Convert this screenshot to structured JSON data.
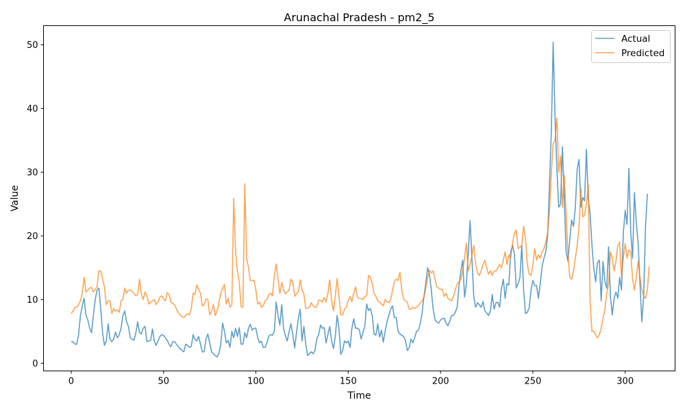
{
  "chart_data": {
    "type": "line",
    "title": "Arunachal Pradesh - pm2_5",
    "xlabel": "Time",
    "ylabel": "Value",
    "xlim": [
      -15,
      327
    ],
    "ylim": [
      -1.2,
      53
    ],
    "xticks": [
      0,
      50,
      100,
      150,
      200,
      250,
      300
    ],
    "yticks": [
      0,
      10,
      20,
      30,
      40,
      50
    ],
    "grid": false,
    "legend_position": "upper right",
    "series": [
      {
        "name": "Actual",
        "color": "#1f77b4",
        "values": [
          3.4,
          3.4,
          3.0,
          3.0,
          4.5,
          7.5,
          9.0,
          10.2,
          7.5,
          6.8,
          5.5,
          4.8,
          7.5,
          10.0,
          11.5,
          11.8,
          8.5,
          4.8,
          2.8,
          3.5,
          6.2,
          3.8,
          3.4,
          3.8,
          4.9,
          4.0,
          4.5,
          5.5,
          7.5,
          8.2,
          6.5,
          5.8,
          4.0,
          3.8,
          3.6,
          4.8,
          6.5,
          4.8,
          4.6,
          5.5,
          5.8,
          3.4,
          3.5,
          3.6,
          5.4,
          3.5,
          2.8,
          3.5,
          4.2,
          4.5,
          4.4,
          4.0,
          3.6,
          3.0,
          2.6,
          3.4,
          3.4,
          3.0,
          2.6,
          2.3,
          2.0,
          1.8,
          3.0,
          2.8,
          2.5,
          2.6,
          4.5,
          3.8,
          3.5,
          4.2,
          3.0,
          1.8,
          1.8,
          3.8,
          4.6,
          3.2,
          1.8,
          1.5,
          1.2,
          1.0,
          1.5,
          3.0,
          6.3,
          5.0,
          3.2,
          3.6,
          2.5,
          5.0,
          4.0,
          5.5,
          4.2,
          5.6,
          3.0,
          3.0,
          4.8,
          4.0,
          5.5,
          6.1,
          5.2,
          5.5,
          5.5,
          4.0,
          3.2,
          3.5,
          2.5,
          2.5,
          3.2,
          4.3,
          4.5,
          4.4,
          5.0,
          9.6,
          7.5,
          6.0,
          9.2,
          5.5,
          4.3,
          3.5,
          5.0,
          6.2,
          4.5,
          2.4,
          4.8,
          7.0,
          8.5,
          3.5,
          5.8,
          3.0,
          1.2,
          1.5,
          1.8,
          1.5,
          2.0,
          3.8,
          4.5,
          6.0,
          5.5,
          5.6,
          3.2,
          4.5,
          5.8,
          3.5,
          2.3,
          4.2,
          7.5,
          5.5,
          1.4,
          2.0,
          3.5,
          3.2,
          3.5,
          2.5,
          5.5,
          7.0,
          5.5,
          5.5,
          5.3,
          3.8,
          4.9,
          5.8,
          9.3,
          8.3,
          8.6,
          7.5,
          4.6,
          4.4,
          6.2,
          4.1,
          5.2,
          3.3,
          5.0,
          6.5,
          7.5,
          8.5,
          9.0,
          7.2,
          7.2,
          5.0,
          4.6,
          4.4,
          4.2,
          3.6,
          2.0,
          2.4,
          3.8,
          3.2,
          4.0,
          5.0,
          5.2,
          6.2,
          7.8,
          10.5,
          12.5,
          15.0,
          14.0,
          11.5,
          8.5,
          6.8,
          6.5,
          6.3,
          6.8,
          7.0,
          7.1,
          6.3,
          5.9,
          6.6,
          7.5,
          7.5,
          8.0,
          8.8,
          12.2,
          14.5,
          16.2,
          10.4,
          12.5,
          17.2,
          22.4,
          16.5,
          10.5,
          8.8,
          9.5,
          9.2,
          8.8,
          9.7,
          8.2,
          7.9,
          7.5,
          8.2,
          10.8,
          8.5,
          9.5,
          9.6,
          8.8,
          11.8,
          13.2,
          10.2,
          12.5,
          12.3,
          17.5,
          18.5,
          17.2,
          11.8,
          12.5,
          13.5,
          18.5,
          11.5,
          7.8,
          8.0,
          8.7,
          11.5,
          13.0,
          12.2,
          12.2,
          10.2,
          12.5,
          15.2,
          16.5,
          17.5,
          20.0,
          28.0,
          36.5,
          50.4,
          38.5,
          30.5,
          24.5,
          25.0,
          34.0,
          26.0,
          17.5,
          16.0,
          19.5,
          22.5,
          21.5,
          24.5,
          30.5,
          32.0,
          24.5,
          26.0,
          25.5,
          33.6,
          25.8,
          23.5,
          18.5,
          14.8,
          12.8,
          15.8,
          16.2,
          9.8,
          16.0,
          12.8,
          11.8,
          18.3,
          10.5,
          7.6,
          10.2,
          11.2,
          10.2,
          13.5,
          11.5,
          20.5,
          24.0,
          21.8,
          30.6,
          20.5,
          16.5,
          26.8,
          22.0,
          19.0,
          12.5,
          6.5,
          10.5,
          21.5,
          26.6
        ]
      },
      {
        "name": "Predicted",
        "color": "#ff7f0e",
        "values": [
          7.8,
          8.2,
          8.8,
          8.8,
          9.3,
          9.8,
          11.0,
          13.5,
          11.2,
          11.5,
          11.8,
          11.9,
          11.2,
          11.6,
          12.0,
          14.5,
          14.5,
          13.2,
          12.0,
          9.2,
          9.8,
          9.8,
          7.8,
          8.6,
          8.2,
          8.4,
          8.0,
          9.8,
          10.0,
          11.8,
          11.0,
          11.5,
          11.5,
          11.3,
          11.0,
          10.6,
          10.8,
          13.2,
          10.8,
          10.0,
          11.2,
          10.6,
          9.3,
          9.6,
          9.8,
          10.0,
          9.2,
          9.7,
          10.4,
          10.6,
          10.1,
          9.8,
          11.1,
          10.8,
          9.6,
          9.4,
          9.2,
          8.5,
          8.0,
          7.6,
          7.3,
          7.2,
          7.5,
          7.8,
          7.6,
          8.5,
          11.0,
          10.8,
          12.3,
          11.6,
          11.0,
          9.0,
          9.2,
          10.1,
          10.0,
          7.6,
          8.2,
          9.2,
          7.5,
          8.2,
          9.5,
          11.0,
          11.8,
          12.4,
          9.3,
          10.2,
          8.8,
          9.2,
          25.9,
          17.5,
          14.5,
          12.8,
          8.9,
          8.8,
          28.2,
          16.5,
          15.0,
          13.0,
          13.0,
          13.0,
          11.5,
          9.3,
          9.6,
          8.8,
          9.0,
          9.8,
          10.0,
          10.8,
          11.0,
          10.6,
          13.8,
          15.6,
          13.3,
          11.0,
          12.7,
          11.5,
          10.9,
          11.2,
          11.5,
          13.2,
          12.8,
          10.5,
          10.9,
          11.2,
          13.1,
          11.5,
          10.9,
          8.6,
          8.6,
          8.8,
          9.5,
          9.0,
          8.8,
          8.9,
          9.9,
          9.9,
          9.6,
          10.3,
          9.6,
          11.0,
          13.1,
          10.0,
          8.2,
          10.5,
          13.3,
          10.5,
          7.6,
          7.6,
          8.5,
          8.8,
          9.8,
          10.5,
          9.7,
          11.0,
          12.0,
          10.4,
          10.2,
          10.2,
          10.0,
          10.5,
          10.6,
          13.8,
          13.5,
          12.5,
          11.0,
          10.5,
          9.8,
          9.6,
          9.3,
          9.0,
          10.0,
          9.7,
          9.5,
          10.0,
          11.5,
          12.8,
          13.2,
          13.0,
          14.3,
          11.5,
          10.1,
          9.8,
          9.6,
          8.5,
          8.5,
          8.8,
          8.6,
          8.8,
          9.0,
          9.5,
          9.8,
          10.3,
          11.8,
          13.5,
          14.6,
          14.2,
          14.5,
          13.2,
          12.0,
          11.8,
          11.6,
          11.6,
          10.5,
          11.0,
          10.2,
          10.0,
          9.8,
          10.5,
          11.5,
          12.5,
          12.8,
          13.2,
          14.5,
          16.5,
          18.9,
          14.5,
          15.5,
          17.0,
          18.5,
          15.5,
          14.2,
          13.8,
          14.5,
          15.5,
          16.2,
          15.0,
          14.0,
          14.5,
          13.8,
          14.5,
          14.5,
          15.0,
          15.5,
          15.0,
          16.2,
          17.5,
          15.5,
          17.0,
          16.5,
          18.8,
          20.5,
          20.9,
          18.0,
          18.2,
          18.5,
          21.5,
          19.5,
          15.5,
          14.0,
          13.8,
          15.5,
          18.0,
          16.2,
          17.0,
          16.5,
          17.5,
          18.0,
          19.0,
          20.5,
          24.0,
          30.0,
          34.5,
          35.0,
          38.5,
          30.0,
          32.5,
          24.5,
          29.5,
          23.5,
          17.0,
          13.5,
          13.2,
          14.5,
          16.5,
          18.5,
          21.5,
          27.5,
          23.0,
          23.2,
          25.0,
          28.0,
          9.5,
          5.0,
          5.0,
          4.5,
          4.0,
          4.5,
          5.5,
          7.0,
          8.5,
          11.0,
          12.5,
          17.5,
          16.5,
          14.5,
          16.0,
          18.5,
          19.0,
          13.5,
          16.5,
          18.8,
          16.5,
          17.8,
          17.5,
          13.2,
          11.5,
          13.5,
          16.0,
          13.5,
          11.5,
          10.5,
          10.2,
          11.5,
          15.2
        ]
      }
    ]
  }
}
